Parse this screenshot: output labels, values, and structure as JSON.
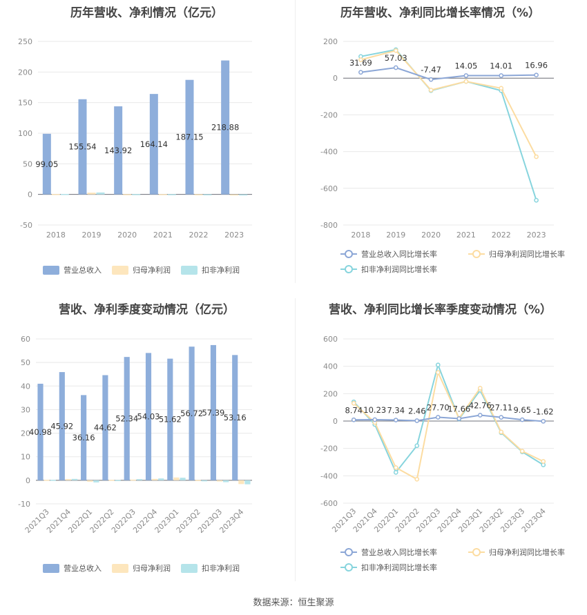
{
  "colors": {
    "revenue": "#8eaedb",
    "net_profit": "#fde6bd",
    "deducted_profit": "#b5e4ea",
    "revenue_line": "#8ba6d6",
    "net_profit_line": "#fcdca1",
    "deducted_line": "#86d4dd",
    "grid": "#e8e8e8"
  },
  "source": "数据来源：恒生聚源",
  "chart_data": [
    {
      "type": "bar",
      "title": "历年营收、净利情况（亿元）",
      "categories": [
        "2018",
        "2019",
        "2020",
        "2021",
        "2022",
        "2023"
      ],
      "ylim": [
        -50,
        250
      ],
      "yticks": [
        "250",
        "200",
        "150",
        "100",
        "50",
        "0",
        "-50"
      ],
      "series": [
        {
          "name": "营业总收入",
          "values": [
            99.05,
            155.54,
            143.92,
            164.14,
            187.15,
            218.88
          ],
          "labels": [
            "99.05",
            "155.54",
            "143.92",
            "164.14",
            "187.15",
            "218.88"
          ]
        },
        {
          "name": "归母净利润",
          "values": [
            0.6,
            2.9,
            0.4,
            0.5,
            0.3,
            -0.4
          ]
        },
        {
          "name": "扣非净利润",
          "values": [
            0.7,
            3.2,
            0.5,
            0.4,
            0.2,
            -1.0
          ]
        }
      ]
    },
    {
      "type": "line",
      "title": "历年营收、净利同比增长率情况（%）",
      "categories": [
        "2018",
        "2019",
        "2020",
        "2021",
        "2022",
        "2023"
      ],
      "ylim": [
        -800,
        200
      ],
      "yticks": [
        "200",
        "0",
        "-200",
        "-400",
        "-600",
        "-800"
      ],
      "series": [
        {
          "name": "营业总收入同比增长率",
          "values": [
            31.69,
            57.03,
            -7.47,
            14.05,
            14.01,
            16.96
          ],
          "labels": [
            "31.69",
            "57.03",
            "-7.47",
            "14.05",
            "14.01",
            "16.96"
          ]
        },
        {
          "name": "归母净利润同比增长率",
          "values": [
            100,
            150,
            -65,
            -18,
            -55,
            -428
          ]
        },
        {
          "name": "扣非净利润同比增长率",
          "values": [
            118,
            155,
            -68,
            -18,
            -68,
            -665
          ]
        }
      ]
    },
    {
      "type": "bar",
      "title": "营收、净利季度变动情况（亿元）",
      "categories": [
        "2021Q3",
        "2021Q4",
        "2022Q1",
        "2022Q2",
        "2022Q3",
        "2022Q4",
        "2023Q1",
        "2023Q2",
        "2023Q3",
        "2023Q4"
      ],
      "ylim": [
        -10,
        60
      ],
      "yticks": [
        "60",
        "50",
        "40",
        "30",
        "20",
        "10",
        "0",
        "-10"
      ],
      "series": [
        {
          "name": "营业总收入",
          "values": [
            40.98,
            45.92,
            36.16,
            44.62,
            52.34,
            54.03,
            51.62,
            56.72,
            57.39,
            53.16
          ],
          "labels": [
            "40.98",
            "45.92",
            "36.16",
            "44.62",
            "52.34",
            "54.03",
            "51.62",
            "56.72",
            "57.39",
            "53.16"
          ]
        },
        {
          "name": "归母净利润",
          "values": [
            0.2,
            0.5,
            -0.6,
            0.2,
            0.3,
            0.6,
            1.2,
            0.1,
            -0.5,
            -1.6
          ]
        },
        {
          "name": "扣非净利润",
          "values": [
            0.2,
            0.6,
            -0.9,
            0.1,
            0.5,
            0.8,
            1.1,
            -0.3,
            -0.8,
            -1.7
          ]
        }
      ]
    },
    {
      "type": "line",
      "title": "营收、净利同比增长率季度变动情况（%）",
      "categories": [
        "2021Q3",
        "2021Q4",
        "2022Q1",
        "2022Q2",
        "2022Q3",
        "2022Q4",
        "2023Q1",
        "2023Q2",
        "2023Q3",
        "2023Q4"
      ],
      "ylim": [
        -600,
        600
      ],
      "yticks": [
        "600",
        "400",
        "200",
        "0",
        "-200",
        "-400",
        "-600"
      ],
      "series": [
        {
          "name": "营业总收入同比增长率",
          "values": [
            8.74,
            10.23,
            7.34,
            2.46,
            27.7,
            17.66,
            42.76,
            27.11,
            9.65,
            -1.62
          ],
          "labels": [
            "8.74",
            "10.23",
            "7.34",
            "2.46",
            "27.70",
            "17.66",
            "42.76",
            "27.11",
            "9.65",
            "-1.62"
          ]
        },
        {
          "name": "归母净利润同比增长率",
          "values": [
            130,
            -10,
            -340,
            -425,
            355,
            20,
            240,
            -80,
            -220,
            -295
          ]
        },
        {
          "name": "扣非净利润同比增长率",
          "values": [
            140,
            -25,
            -375,
            -180,
            410,
            15,
            225,
            -85,
            -225,
            -320
          ]
        }
      ]
    }
  ]
}
